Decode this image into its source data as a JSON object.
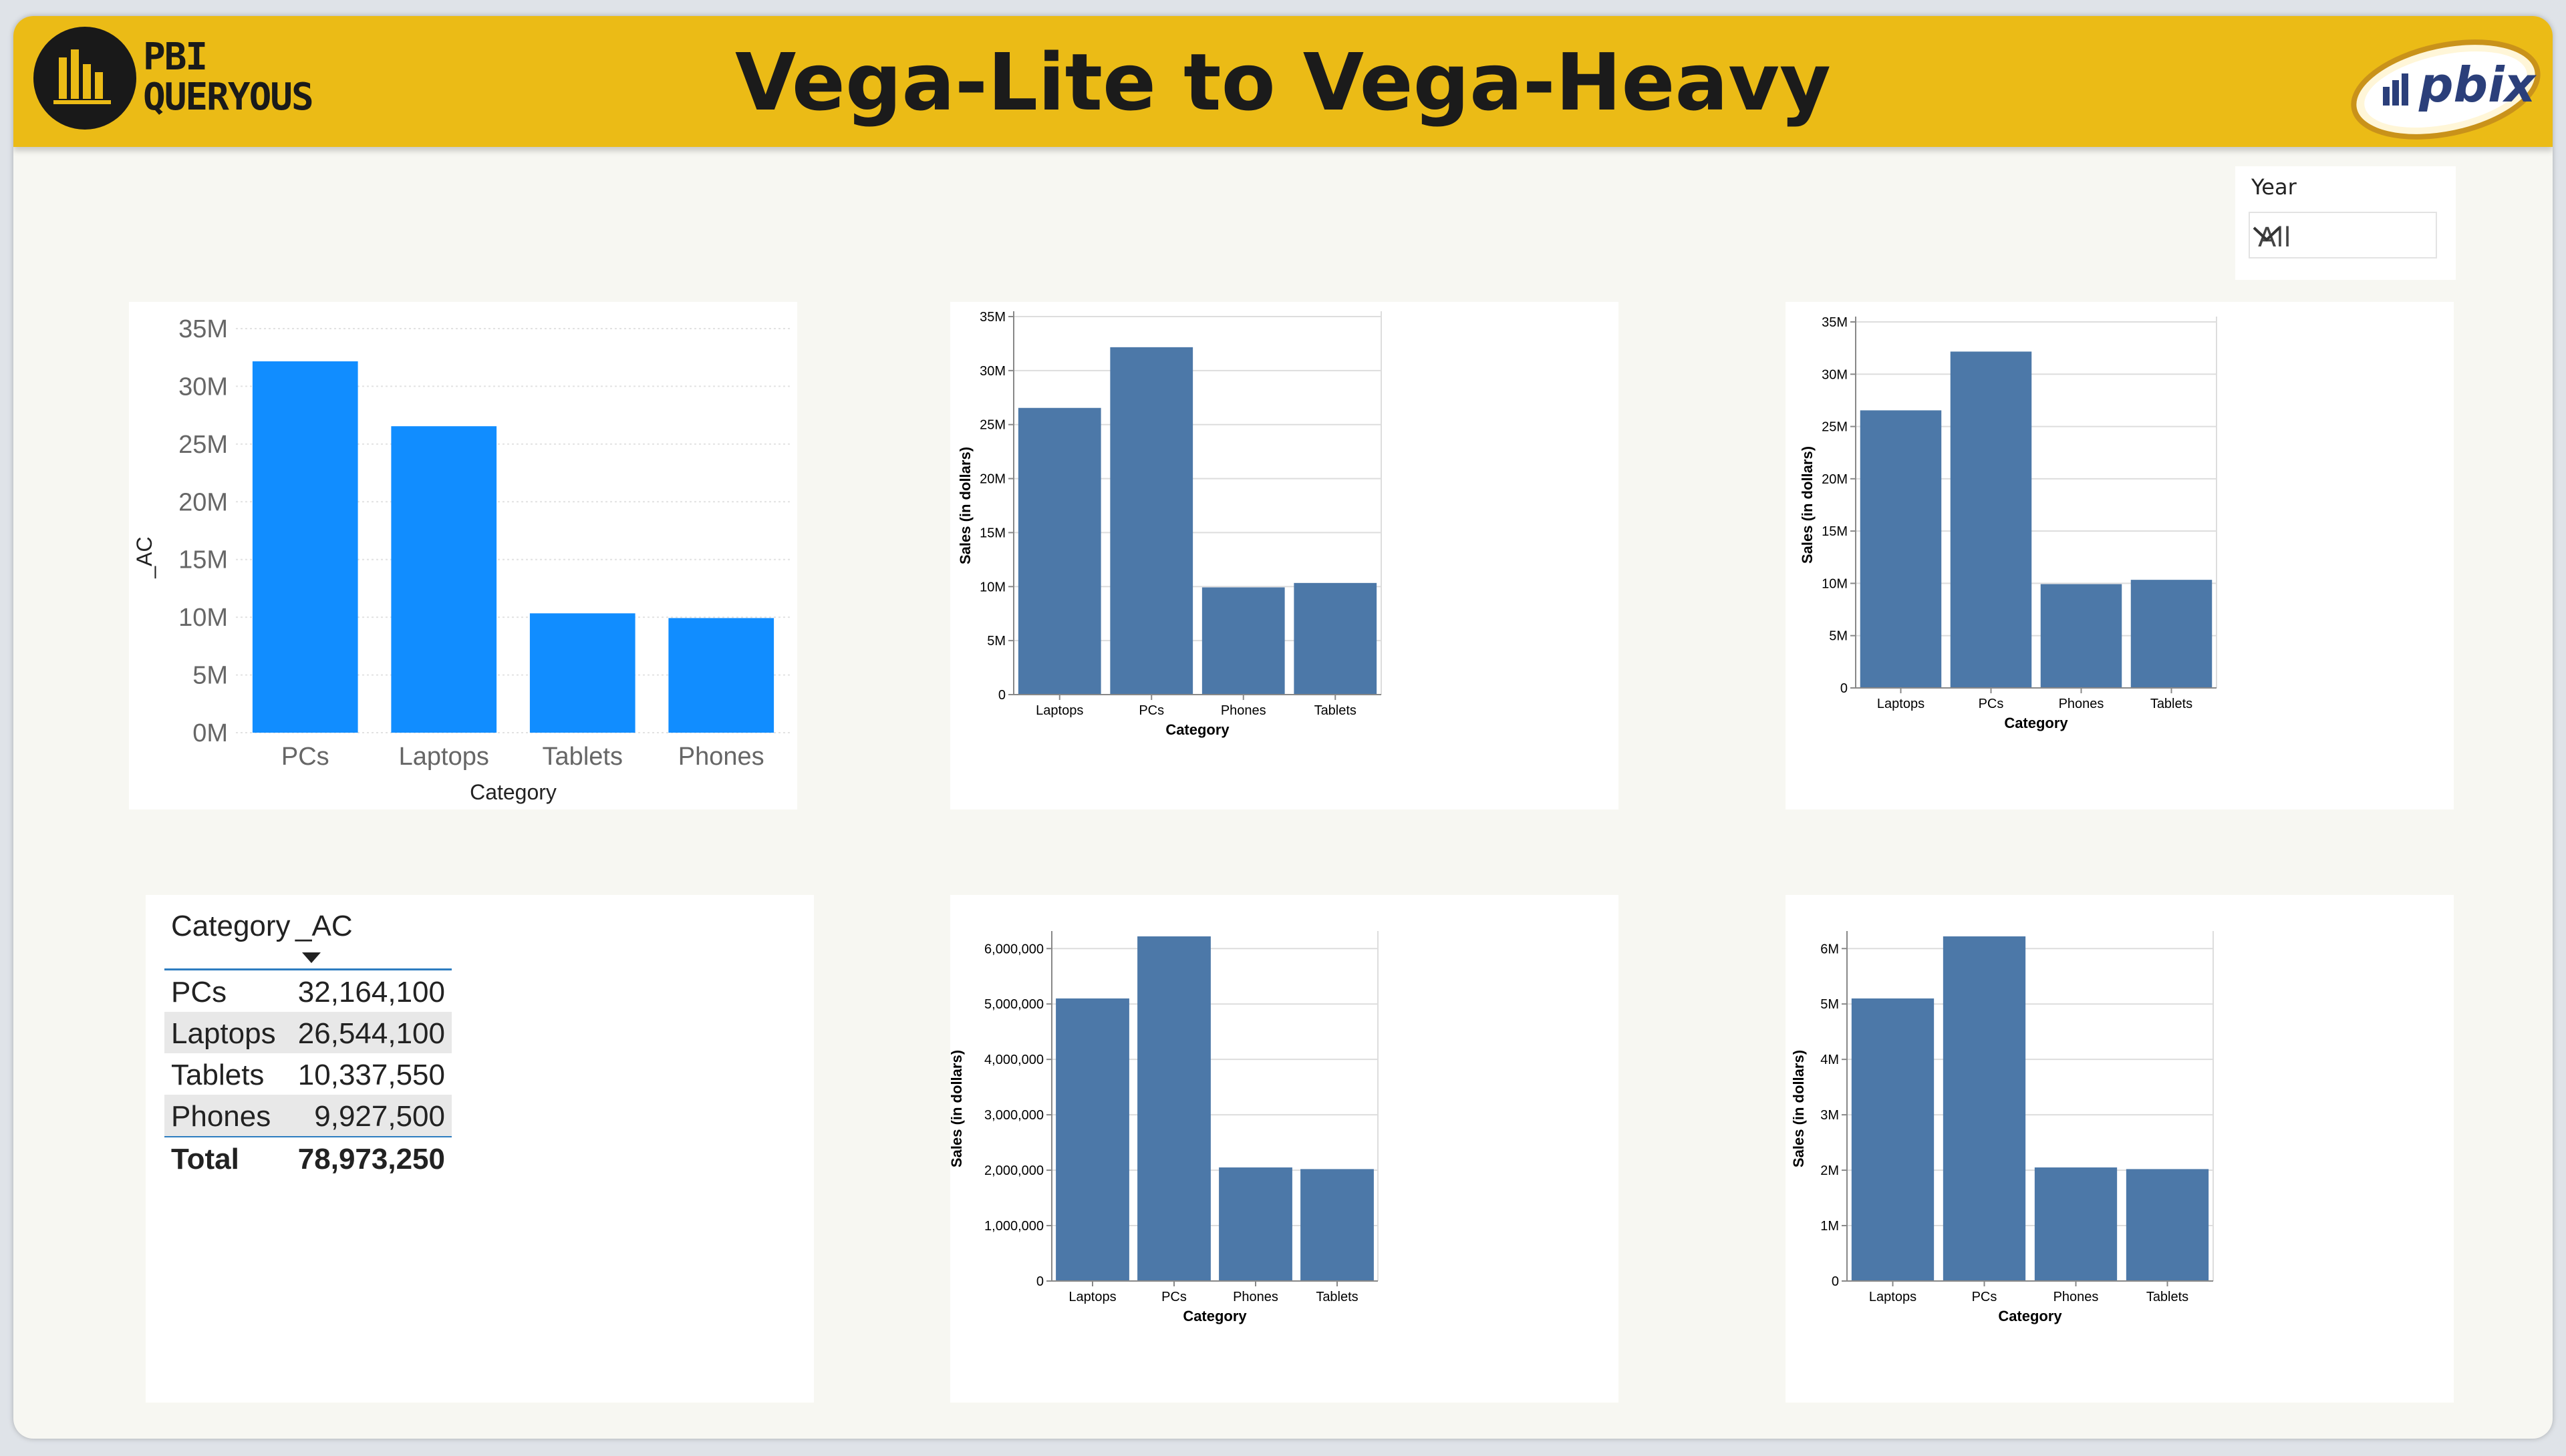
{
  "header": {
    "title": "Vega-Lite to Vega-Heavy",
    "logo_line1": "PBI",
    "logo_line2": "QUERYOUS",
    "badge_text": "pbix",
    "logo_icon": "bar-chart-icon"
  },
  "slicer": {
    "label": "Year",
    "value": "All",
    "icon": "chevron-down-icon"
  },
  "table": {
    "headers": [
      "Category",
      "_AC"
    ],
    "rows": [
      {
        "category": "PCs",
        "value": "32,164,100"
      },
      {
        "category": "Laptops",
        "value": "26,544,100"
      },
      {
        "category": "Tablets",
        "value": "10,337,550"
      },
      {
        "category": "Phones",
        "value": "9,927,500"
      }
    ],
    "total_label": "Total",
    "total_value": "78,973,250"
  },
  "colors": {
    "header": "#ebbb16",
    "pbi_bar": "#118dff",
    "vega_bar": "#4c78a8",
    "frame_bg": "#f7f7f2"
  },
  "chart_data": [
    {
      "id": "pbi-bar",
      "type": "bar",
      "categories": [
        "PCs",
        "Laptops",
        "Tablets",
        "Phones"
      ],
      "values": [
        32164100,
        26544100,
        10337550,
        9927500
      ],
      "xlabel": "Category",
      "ylabel": "_AC",
      "ylim": [
        0,
        35000000
      ],
      "yticks": [
        "0M",
        "5M",
        "10M",
        "15M",
        "20M",
        "25M",
        "30M",
        "35M"
      ],
      "grid": true
    },
    {
      "id": "vega-sales-1",
      "type": "bar",
      "categories": [
        "Laptops",
        "PCs",
        "Phones",
        "Tablets"
      ],
      "values": [
        26544100,
        32164100,
        9927500,
        10337550
      ],
      "xlabel": "Category",
      "ylabel": "Sales (in dollars)",
      "ylim": [
        0,
        35000000
      ],
      "yticks": [
        "0",
        "5M",
        "10M",
        "15M",
        "20M",
        "25M",
        "30M",
        "35M"
      ],
      "grid": true
    },
    {
      "id": "vega-sales-2",
      "type": "bar",
      "categories": [
        "Laptops",
        "PCs",
        "Phones",
        "Tablets"
      ],
      "values": [
        26544100,
        32164100,
        9927500,
        10337550
      ],
      "xlabel": "Category",
      "ylabel": "Sales (in dollars)",
      "ylim": [
        0,
        35000000
      ],
      "yticks": [
        "0",
        "5M",
        "10M",
        "15M",
        "20M",
        "25M",
        "30M",
        "35M"
      ],
      "grid": true
    },
    {
      "id": "vega-sales-3",
      "type": "bar",
      "categories": [
        "Laptops",
        "PCs",
        "Phones",
        "Tablets"
      ],
      "values": [
        5100000,
        6220000,
        2050000,
        2020000
      ],
      "xlabel": "Category",
      "ylabel": "Sales (in dollars)",
      "ylim": [
        0,
        6220000
      ],
      "yticks": [
        "0",
        "1,000,000",
        "2,000,000",
        "3,000,000",
        "4,000,000",
        "5,000,000",
        "6,000,000"
      ],
      "grid": true
    },
    {
      "id": "vega-sales-4",
      "type": "bar",
      "categories": [
        "Laptops",
        "PCs",
        "Phones",
        "Tablets"
      ],
      "values": [
        5100000,
        6220000,
        2050000,
        2020000
      ],
      "xlabel": "Category",
      "ylabel": "Sales (in dollars)",
      "ylim": [
        0,
        6220000
      ],
      "yticks": [
        "0",
        "1M",
        "2M",
        "3M",
        "4M",
        "5M",
        "6M"
      ],
      "grid": true
    }
  ]
}
